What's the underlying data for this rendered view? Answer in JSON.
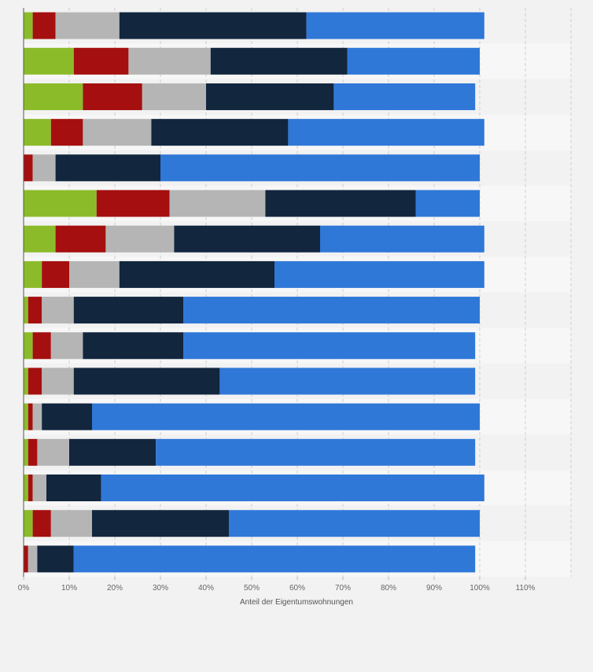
{
  "chart_data": {
    "type": "bar",
    "orientation": "horizontal",
    "stacked": true,
    "xlabel": "Anteil der Eigentumswohnungen",
    "xlim": [
      0,
      110
    ],
    "x_ticks": [
      "0%",
      "10%",
      "20%",
      "30%",
      "40%",
      "50%",
      "60%",
      "70%",
      "80%",
      "90%",
      "100%",
      "110%"
    ],
    "grid": true,
    "legend": "none",
    "categories": [
      "",
      "",
      "",
      "",
      "",
      "",
      "",
      "",
      "",
      "",
      "",
      "",
      "",
      "",
      "",
      ""
    ],
    "series": [
      {
        "color": "#8cbb2a",
        "values": [
          2,
          11,
          13,
          6,
          0,
          16,
          7,
          4,
          1,
          2,
          1,
          1,
          1,
          1,
          2,
          0
        ]
      },
      {
        "color": "#a50f0f",
        "values": [
          5,
          12,
          13,
          7,
          2,
          16,
          11,
          6,
          3,
          4,
          3,
          1,
          2,
          1,
          4,
          1
        ]
      },
      {
        "color": "#b5b5b5",
        "values": [
          14,
          18,
          14,
          15,
          5,
          21,
          15,
          11,
          7,
          7,
          7,
          2,
          7,
          3,
          9,
          2
        ]
      },
      {
        "color": "#12263e",
        "values": [
          41,
          30,
          28,
          30,
          23,
          33,
          32,
          34,
          24,
          22,
          32,
          11,
          19,
          12,
          30,
          8
        ]
      },
      {
        "color": "#2f78d8",
        "values": [
          39,
          29,
          31,
          43,
          70,
          14,
          36,
          46,
          65,
          64,
          56,
          85,
          70,
          84,
          55,
          88
        ]
      }
    ]
  }
}
